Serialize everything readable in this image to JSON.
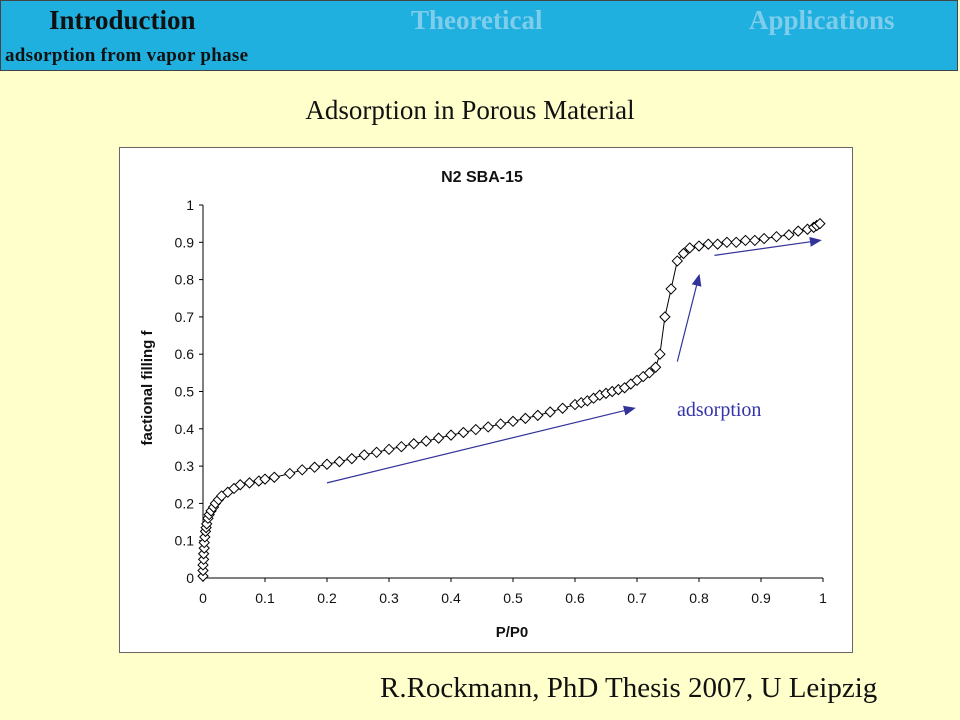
{
  "header": {
    "tabs": [
      {
        "label": "Introduction",
        "active": true
      },
      {
        "label": "Theoretical",
        "active": false
      },
      {
        "label": "Applications",
        "active": false
      }
    ],
    "subtitle": "adsorption from vapor phase",
    "bg_color": "#1fb0e0",
    "active_color": "#111111",
    "inactive_color": "#7fcdea"
  },
  "slide": {
    "title": "Adsorption in Porous Material",
    "citation": "R.Rockmann, PhD Thesis 2007, U Leipzig",
    "bg_color": "#ffffcc"
  },
  "chart_data": {
    "type": "scatter",
    "title": "N2 SBA-15",
    "xlabel": "P/P0",
    "ylabel": "factional filling f",
    "xlim": [
      0,
      1
    ],
    "ylim": [
      0,
      1
    ],
    "xticks": [
      "0",
      "0.1",
      "0.2",
      "0.3",
      "0.4",
      "0.5",
      "0.6",
      "0.7",
      "0.8",
      "0.9",
      "1"
    ],
    "yticks": [
      "0",
      "0.1",
      "0.2",
      "0.3",
      "0.4",
      "0.5",
      "0.6",
      "0.7",
      "0.8",
      "0.9",
      "1"
    ],
    "marker": "diamond",
    "connected": true,
    "grid": false,
    "annotation": {
      "text": "adsorption",
      "color": "#3333aa"
    },
    "arrows": [
      {
        "from": [
          0.2,
          0.255
        ],
        "to": [
          0.695,
          0.455
        ]
      },
      {
        "from": [
          0.765,
          0.58
        ],
        "to": [
          0.8,
          0.81
        ]
      },
      {
        "from": [
          0.825,
          0.865
        ],
        "to": [
          0.995,
          0.905
        ]
      }
    ],
    "arrow_color": "#333399",
    "series": [
      {
        "x": [
          0.0,
          0.0,
          0.0,
          0.001,
          0.001,
          0.002,
          0.002,
          0.003,
          0.004,
          0.005,
          0.006,
          0.008,
          0.01,
          0.013,
          0.017,
          0.02,
          0.025,
          0.03,
          0.04,
          0.05,
          0.06,
          0.075,
          0.09,
          0.1,
          0.115,
          0.14,
          0.16,
          0.18,
          0.2,
          0.22,
          0.24,
          0.26,
          0.28,
          0.3,
          0.32,
          0.34,
          0.36,
          0.38,
          0.4,
          0.42,
          0.44,
          0.46,
          0.48,
          0.5,
          0.52,
          0.54,
          0.56,
          0.58,
          0.6,
          0.61,
          0.62,
          0.63,
          0.64,
          0.65,
          0.66,
          0.67,
          0.68,
          0.69,
          0.7,
          0.71,
          0.72,
          0.73,
          0.737,
          0.745,
          0.755,
          0.765,
          0.775,
          0.785,
          0.8,
          0.815,
          0.83,
          0.845,
          0.86,
          0.875,
          0.89,
          0.905,
          0.925,
          0.945,
          0.96,
          0.975,
          0.985,
          0.99,
          0.995
        ],
        "y": [
          0.005,
          0.02,
          0.035,
          0.05,
          0.065,
          0.08,
          0.095,
          0.11,
          0.125,
          0.135,
          0.145,
          0.16,
          0.17,
          0.18,
          0.19,
          0.2,
          0.21,
          0.22,
          0.23,
          0.24,
          0.25,
          0.255,
          0.26,
          0.265,
          0.27,
          0.28,
          0.29,
          0.297,
          0.305,
          0.312,
          0.32,
          0.33,
          0.337,
          0.345,
          0.352,
          0.36,
          0.367,
          0.375,
          0.383,
          0.39,
          0.398,
          0.405,
          0.413,
          0.42,
          0.428,
          0.436,
          0.445,
          0.455,
          0.465,
          0.47,
          0.475,
          0.482,
          0.49,
          0.495,
          0.5,
          0.505,
          0.51,
          0.52,
          0.53,
          0.54,
          0.55,
          0.565,
          0.6,
          0.7,
          0.775,
          0.85,
          0.87,
          0.885,
          0.89,
          0.895,
          0.895,
          0.9,
          0.9,
          0.905,
          0.905,
          0.91,
          0.915,
          0.92,
          0.93,
          0.935,
          0.94,
          0.945,
          0.95
        ]
      }
    ]
  }
}
